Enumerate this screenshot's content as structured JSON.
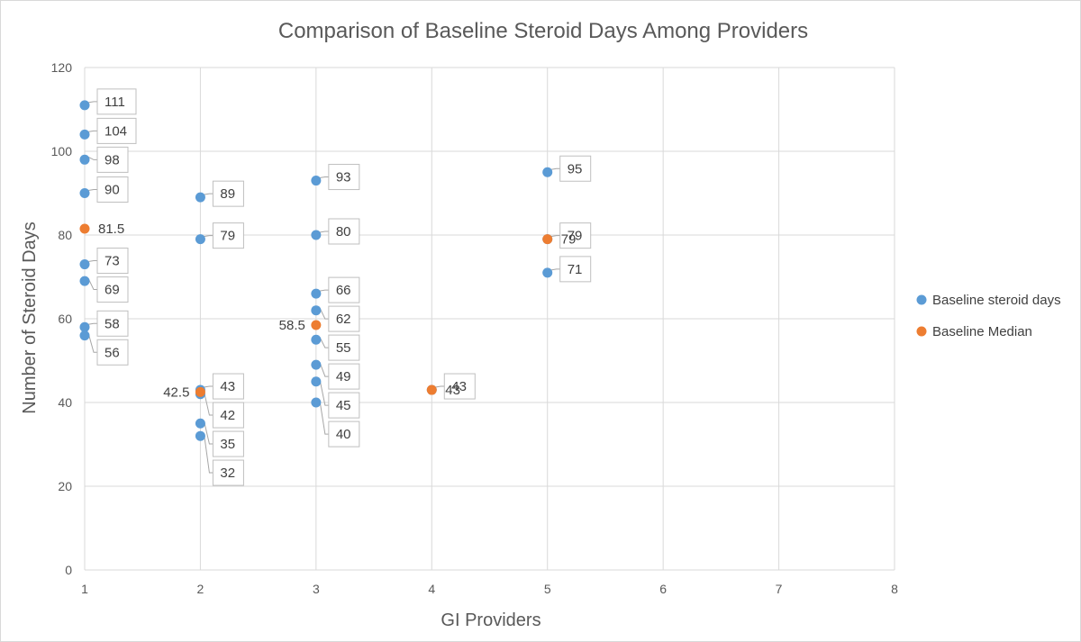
{
  "chart_data": {
    "type": "scatter",
    "title": "Comparison of Baseline Steroid Days Among Providers",
    "xlabel": "GI Providers",
    "ylabel": "Number of Steroid Days",
    "xlim": [
      1,
      8
    ],
    "ylim": [
      0,
      120
    ],
    "x_ticks": [
      "1",
      "2",
      "3",
      "4",
      "5",
      "6",
      "7",
      "8"
    ],
    "y_ticks": [
      "0",
      "20",
      "40",
      "60",
      "80",
      "100",
      "120"
    ],
    "grid": true,
    "legend_position": "right",
    "series": [
      {
        "name": "Baseline steroid days",
        "color": "#5b9bd5",
        "points": [
          {
            "x": 1,
            "y": 111,
            "label": "111"
          },
          {
            "x": 1,
            "y": 104,
            "label": "104"
          },
          {
            "x": 1,
            "y": 98,
            "label": "98"
          },
          {
            "x": 1,
            "y": 90,
            "label": "90"
          },
          {
            "x": 1,
            "y": 73,
            "label": "73"
          },
          {
            "x": 1,
            "y": 69,
            "label": "69"
          },
          {
            "x": 1,
            "y": 58,
            "label": "58"
          },
          {
            "x": 1,
            "y": 56,
            "label": "56"
          },
          {
            "x": 2,
            "y": 89,
            "label": "89"
          },
          {
            "x": 2,
            "y": 79,
            "label": "79"
          },
          {
            "x": 2,
            "y": 43,
            "label": "43"
          },
          {
            "x": 2,
            "y": 42,
            "label": "42"
          },
          {
            "x": 2,
            "y": 35,
            "label": "35"
          },
          {
            "x": 2,
            "y": 32,
            "label": "32"
          },
          {
            "x": 3,
            "y": 93,
            "label": "93"
          },
          {
            "x": 3,
            "y": 80,
            "label": "80"
          },
          {
            "x": 3,
            "y": 66,
            "label": "66"
          },
          {
            "x": 3,
            "y": 62,
            "label": "62"
          },
          {
            "x": 3,
            "y": 55,
            "label": "55"
          },
          {
            "x": 3,
            "y": 49,
            "label": "49"
          },
          {
            "x": 3,
            "y": 45,
            "label": "45"
          },
          {
            "x": 3,
            "y": 40,
            "label": "40"
          },
          {
            "x": 4,
            "y": 43,
            "label": "43"
          },
          {
            "x": 5,
            "y": 95,
            "label": "95"
          },
          {
            "x": 5,
            "y": 79,
            "label": "79"
          },
          {
            "x": 5,
            "y": 71,
            "label": "71"
          }
        ]
      },
      {
        "name": "Baseline Median",
        "color": "#ed7d31",
        "points": [
          {
            "x": 1,
            "y": 81.5,
            "label": "81.5"
          },
          {
            "x": 2,
            "y": 42.5,
            "label": "42.5"
          },
          {
            "x": 3,
            "y": 58.5,
            "label": "58.5"
          },
          {
            "x": 4,
            "y": 43,
            "label": "43"
          },
          {
            "x": 5,
            "y": 79,
            "label": "79"
          }
        ]
      }
    ]
  }
}
